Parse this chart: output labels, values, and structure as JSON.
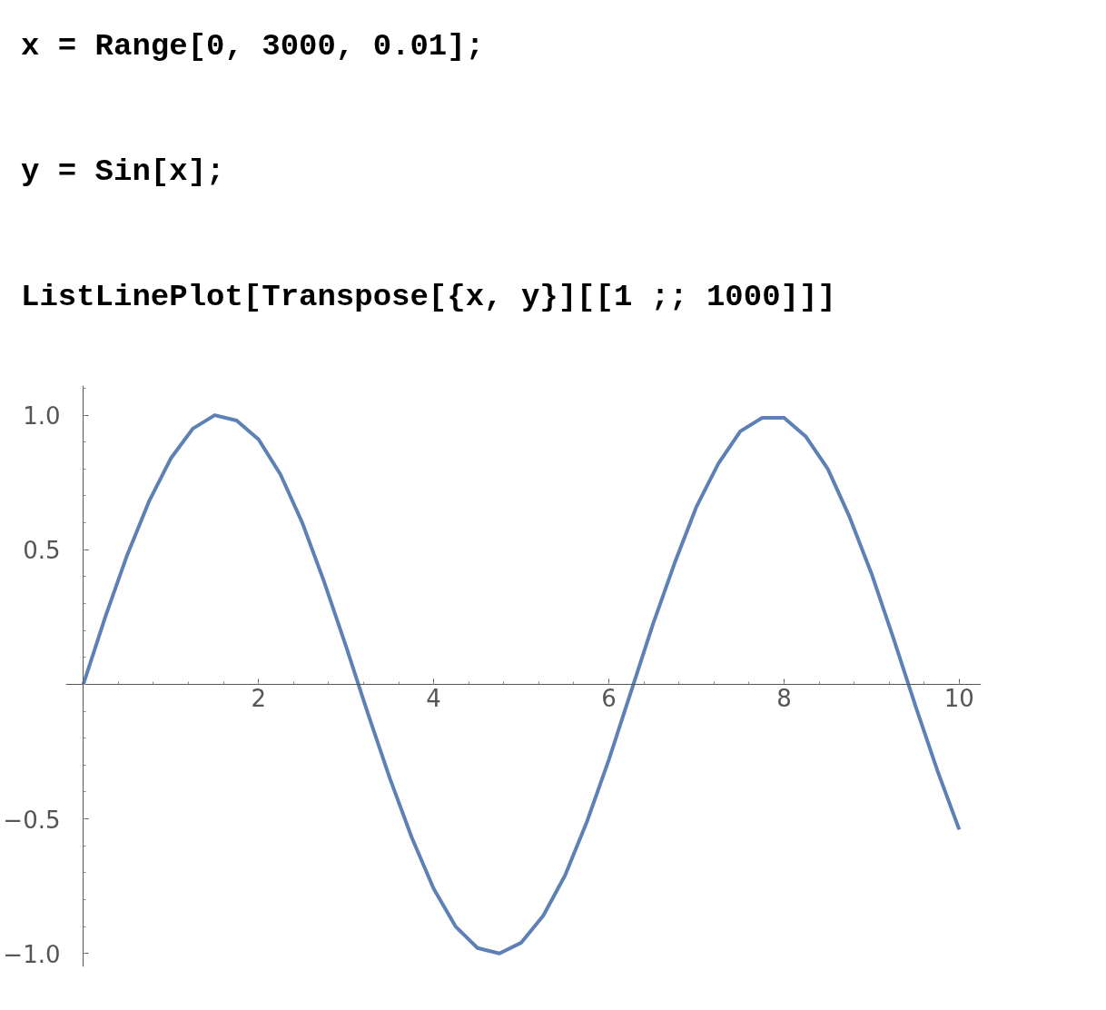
{
  "chart_data": {
    "type": "line",
    "annotations": [
      "x = Range[0, 3000, 0.01];",
      "y = Sin[x];",
      "ListLinePlot[Transpose[{x, y}][[1 ;; 1000]]]"
    ],
    "x": [
      0,
      0.25,
      0.5,
      0.75,
      1,
      1.25,
      1.5,
      1.75,
      2,
      2.25,
      2.5,
      2.75,
      3,
      3.25,
      3.5,
      3.75,
      4,
      4.25,
      4.5,
      4.75,
      5,
      5.25,
      5.5,
      5.75,
      6,
      6.25,
      6.5,
      6.75,
      7,
      7.25,
      7.5,
      7.75,
      8,
      8.25,
      8.5,
      8.75,
      9,
      9.25,
      9.5,
      9.75,
      10
    ],
    "series": [
      {
        "color": "#5e81b5",
        "values": [
          0,
          0.25,
          0.48,
          0.68,
          0.84,
          0.95,
          1.0,
          0.98,
          0.91,
          0.78,
          0.6,
          0.38,
          0.14,
          -0.11,
          -0.35,
          -0.57,
          -0.76,
          -0.9,
          -0.98,
          -1.0,
          -0.96,
          -0.86,
          -0.71,
          -0.51,
          -0.28,
          -0.03,
          0.22,
          0.45,
          0.66,
          0.82,
          0.94,
          0.99,
          0.99,
          0.92,
          0.8,
          0.62,
          0.41,
          0.17,
          -0.08,
          -0.32,
          -0.54
        ]
      }
    ],
    "xlim": [
      -0.2,
      10.25
    ],
    "ylim": [
      -1.05,
      1.11
    ],
    "xticks": [
      2,
      4,
      6,
      8,
      10
    ],
    "yticks": [
      {
        "value": -1.0,
        "label": "−1.0"
      },
      {
        "value": -0.5,
        "label": "−0.5"
      },
      {
        "value": 0.5,
        "label": "0.5"
      },
      {
        "value": 1.0,
        "label": "1.0"
      }
    ],
    "grid": false,
    "marker": "none",
    "line_style": "solid"
  }
}
